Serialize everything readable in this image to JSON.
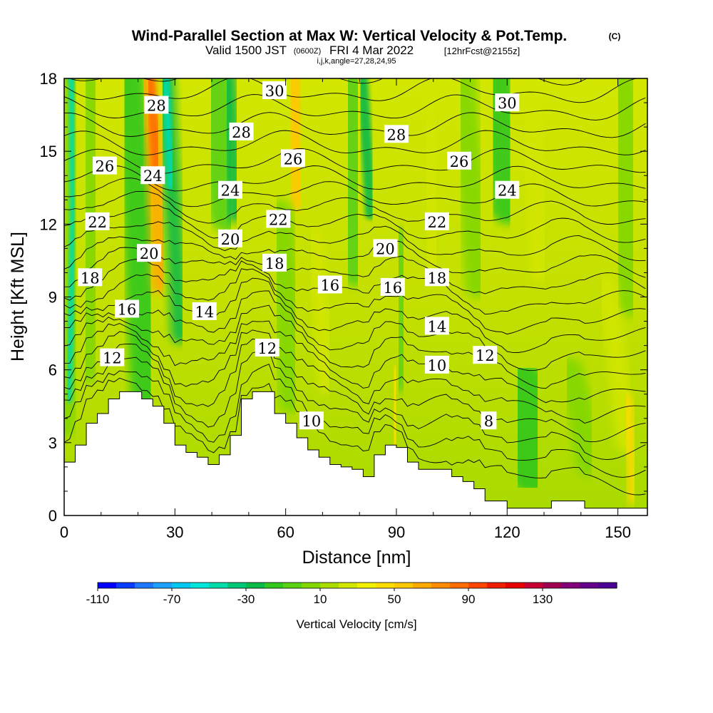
{
  "title": {
    "main": "Wind-Parallel Section at Max W: Vertical Velocity & Pot.Temp.",
    "copyright": "(C)",
    "valid_prefix": "Valid 1500 JST",
    "valid_utc": "(0600Z)",
    "valid_date": "FRI 4 Mar 2022",
    "forecast": "[12hrFcst@2155z]",
    "params": "i,j,k,angle=27,28,24,95"
  },
  "chart_data": {
    "type": "heatmap",
    "xlabel": "Distance [nm]",
    "ylabel": "Height [Kft MSL]",
    "xlim": [
      0,
      158
    ],
    "ylim": [
      0,
      18
    ],
    "x_ticks": [
      "0",
      "30",
      "60",
      "90",
      "120",
      "150"
    ],
    "x_tick_values": [
      0,
      30,
      60,
      90,
      120,
      150
    ],
    "y_ticks": [
      "0",
      "3",
      "6",
      "9",
      "12",
      "15",
      "18"
    ],
    "y_tick_values": [
      0,
      3,
      6,
      9,
      12,
      15,
      18
    ],
    "colorbar": {
      "label": "Vertical Velocity [cm/s]",
      "tick_labels": [
        "-110",
        "-70",
        "-30",
        "10",
        "50",
        "90",
        "130"
      ],
      "tick_values": [
        -110,
        -70,
        -30,
        10,
        50,
        90,
        130
      ],
      "colors": [
        "#0000ff",
        "#0a3cff",
        "#1e78ff",
        "#1ea0ff",
        "#00c8f0",
        "#00e6dc",
        "#00dcaa",
        "#00c878",
        "#0aba46",
        "#32c81e",
        "#5ad214",
        "#82d700",
        "#aadc00",
        "#d2e600",
        "#f0f000",
        "#ffdc00",
        "#ffc800",
        "#ffaa00",
        "#ff8c00",
        "#ff6e00",
        "#ff4600",
        "#f01e00",
        "#e60000",
        "#c80032",
        "#a00050",
        "#820078",
        "#64008c",
        "#4b0096"
      ]
    },
    "terrain": {
      "description": "Terrain profile (kft MSL) along the section, piecewise",
      "x": [
        0,
        3,
        6,
        9,
        12,
        15,
        18,
        21,
        24,
        27,
        30,
        33,
        36,
        39,
        42,
        45,
        48,
        51,
        54,
        57,
        60,
        63,
        66,
        69,
        72,
        75,
        78,
        81,
        84,
        87,
        90,
        93,
        96,
        99,
        102,
        105,
        108,
        111,
        114,
        117,
        120,
        123,
        126,
        129,
        132,
        135,
        138,
        141,
        144,
        147,
        150,
        153,
        156,
        158
      ],
      "height": [
        2.2,
        2.9,
        3.8,
        4.2,
        4.8,
        5.1,
        5.1,
        4.8,
        4.5,
        3.8,
        2.9,
        2.6,
        2.4,
        2.1,
        2.5,
        3.3,
        4.8,
        5.1,
        5.1,
        4.2,
        3.8,
        3.2,
        2.7,
        2.4,
        2.1,
        2.0,
        1.9,
        1.6,
        2.5,
        2.9,
        2.8,
        2.2,
        1.9,
        1.9,
        1.9,
        1.6,
        1.4,
        1.1,
        0.6,
        0.6,
        0.3,
        0.3,
        0.3,
        0.3,
        0.6,
        0.6,
        0.6,
        0.3,
        0.3,
        0.3,
        0.3,
        0.3,
        0.3,
        0.3
      ]
    },
    "isentrope_labels": [
      {
        "text": "12",
        "x": 13,
        "y": 6.5
      },
      {
        "text": "16",
        "x": 17,
        "y": 8.5
      },
      {
        "text": "18",
        "x": 7,
        "y": 9.8
      },
      {
        "text": "22",
        "x": 9,
        "y": 12.1
      },
      {
        "text": "26",
        "x": 11,
        "y": 14.4
      },
      {
        "text": "20",
        "x": 23,
        "y": 10.8
      },
      {
        "text": "24",
        "x": 24,
        "y": 14.0
      },
      {
        "text": "28",
        "x": 25,
        "y": 16.9
      },
      {
        "text": "14",
        "x": 38,
        "y": 8.4
      },
      {
        "text": "20",
        "x": 45,
        "y": 11.4
      },
      {
        "text": "24",
        "x": 45,
        "y": 13.4
      },
      {
        "text": "28",
        "x": 48,
        "y": 15.8
      },
      {
        "text": "30",
        "x": 57,
        "y": 17.5
      },
      {
        "text": "12",
        "x": 55,
        "y": 6.9
      },
      {
        "text": "10",
        "x": 67,
        "y": 3.9
      },
      {
        "text": "18",
        "x": 57,
        "y": 10.4
      },
      {
        "text": "22",
        "x": 58,
        "y": 12.2
      },
      {
        "text": "26",
        "x": 62,
        "y": 14.7
      },
      {
        "text": "16",
        "x": 72,
        "y": 9.5
      },
      {
        "text": "16",
        "x": 89,
        "y": 9.4
      },
      {
        "text": "20",
        "x": 87,
        "y": 11.0
      },
      {
        "text": "28",
        "x": 90,
        "y": 15.7
      },
      {
        "text": "14",
        "x": 101,
        "y": 7.8
      },
      {
        "text": "10",
        "x": 101,
        "y": 6.2
      },
      {
        "text": "18",
        "x": 101,
        "y": 9.8
      },
      {
        "text": "22",
        "x": 101,
        "y": 12.1
      },
      {
        "text": "26",
        "x": 107,
        "y": 14.6
      },
      {
        "text": "12",
        "x": 114,
        "y": 6.6
      },
      {
        "text": "8",
        "x": 115,
        "y": 3.9
      },
      {
        "text": "24",
        "x": 120,
        "y": 13.4
      },
      {
        "text": "30",
        "x": 120,
        "y": 17.0
      }
    ],
    "grid": false
  }
}
